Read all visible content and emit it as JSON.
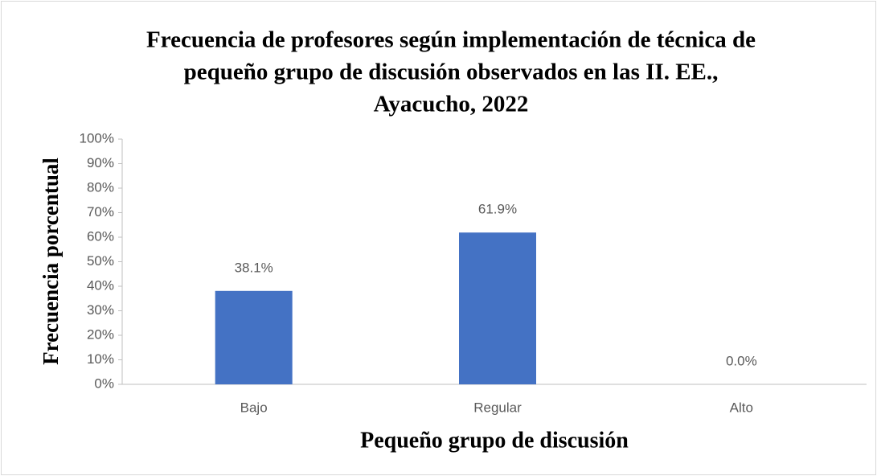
{
  "chart_data": {
    "type": "bar",
    "title": [
      "Frecuencia de profesores según implementación de técnica de",
      "pequeño grupo de discusión observados en las II. EE.,",
      "Ayacucho, 2022"
    ],
    "x_label": "Pequeño grupo de discusión",
    "y_label": "Frecuencia porcentual",
    "categories": [
      "Bajo",
      "Regular",
      "Alto"
    ],
    "values": [
      38.1,
      61.9,
      0
    ],
    "value_labels": [
      "38.1%",
      "61.9%",
      "0.0%"
    ],
    "color": "#4472c4",
    "ylim": [
      0,
      100
    ],
    "yticks": [
      {
        "value": 0,
        "label": "0%"
      },
      {
        "value": 10,
        "label": "10%"
      },
      {
        "value": 20,
        "label": "20%"
      },
      {
        "value": 30,
        "label": "30%"
      },
      {
        "value": 40,
        "label": "40%"
      },
      {
        "value": 50,
        "label": "50%"
      },
      {
        "value": 60,
        "label": "60%"
      },
      {
        "value": 70,
        "label": "70%"
      },
      {
        "value": 80,
        "label": "80%"
      },
      {
        "value": 90,
        "label": "90%"
      },
      {
        "value": 100,
        "label": "100%"
      }
    ],
    "grid": false
  }
}
